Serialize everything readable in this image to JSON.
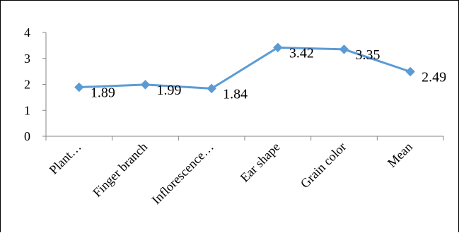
{
  "chart_data": {
    "type": "line",
    "title": "",
    "xlabel": "",
    "ylabel": "",
    "categories": [
      "Plant…",
      "Finger branch",
      "Inflorescence…",
      "Ear shape",
      "Grain color",
      "Mean"
    ],
    "values": [
      1.89,
      1.99,
      1.84,
      3.42,
      3.35,
      2.49
    ],
    "data_labels": [
      "1.89",
      "1.99",
      "1.84",
      "3.42",
      "3.35",
      "2.49"
    ],
    "y_ticks": [
      0,
      1,
      2,
      3,
      4
    ],
    "y_tick_labels": [
      "0",
      "1",
      "2",
      "3",
      "4"
    ],
    "ylim": [
      0,
      4
    ],
    "grid": false,
    "legend": "none",
    "line_color": "#5B9BD5",
    "marker": "diamond"
  }
}
